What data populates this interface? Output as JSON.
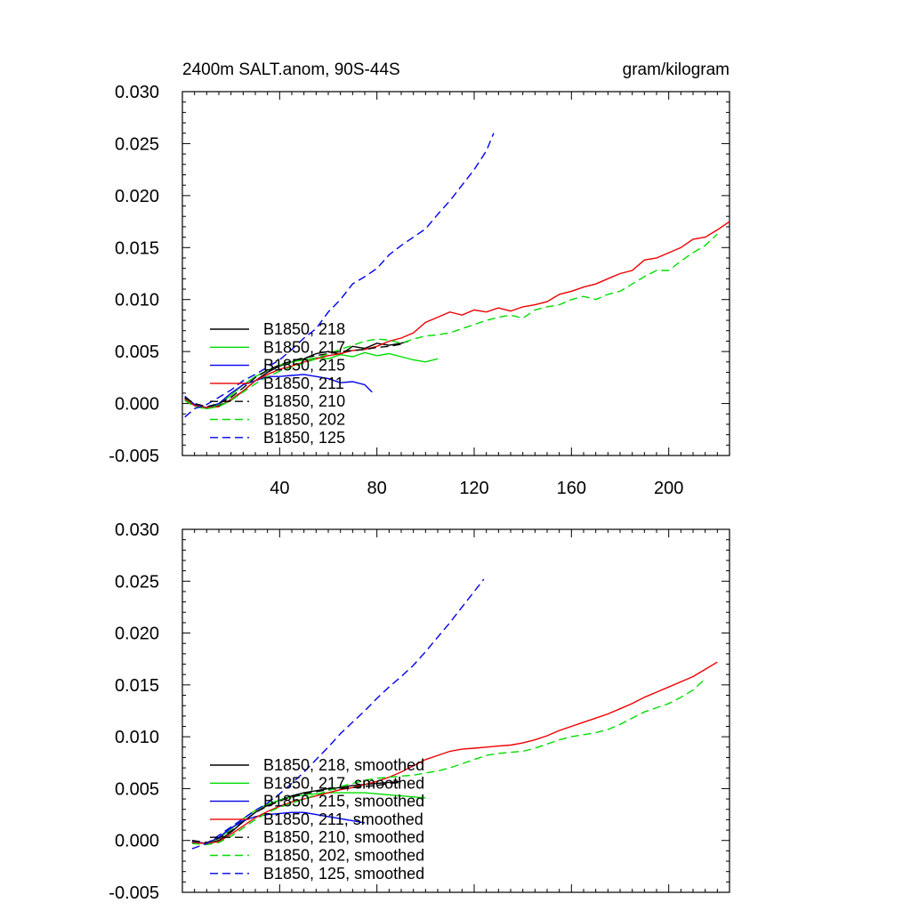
{
  "chart_data": [
    {
      "type": "line",
      "title": "2400m SALT.anom, 90S-44S",
      "units": "gram/kilogram",
      "xlim": [
        0,
        225
      ],
      "ylim": [
        -0.005,
        0.03
      ],
      "yticks": [
        "-0.005",
        "0.000",
        "0.005",
        "0.010",
        "0.015",
        "0.020",
        "0.025",
        "0.030"
      ],
      "xticks": [
        "40",
        "80",
        "120",
        "160",
        "200"
      ],
      "legend_position": "lower-left",
      "series": [
        {
          "name": "B1850, 218",
          "color": "#000000",
          "dash": "solid",
          "x": [
            1,
            5,
            10,
            15,
            20,
            25,
            30,
            35,
            40,
            45,
            50,
            55,
            60,
            65,
            70,
            75,
            80,
            85,
            90,
            93
          ],
          "y": [
            0.0005,
            -0.0001,
            -0.0004,
            -0.0002,
            0.0003,
            0.0012,
            0.0022,
            0.003,
            0.0036,
            0.004,
            0.0043,
            0.0048,
            0.005,
            0.0047,
            0.0055,
            0.0053,
            0.0058,
            0.0056,
            0.0058,
            0.006
          ]
        },
        {
          "name": "B1850, 217",
          "color": "#00dd00",
          "dash": "solid",
          "x": [
            1,
            5,
            10,
            15,
            20,
            25,
            30,
            35,
            40,
            45,
            50,
            55,
            60,
            65,
            70,
            75,
            80,
            85,
            90,
            95,
            100,
            105
          ],
          "y": [
            0.0006,
            -0.0002,
            -0.0005,
            -0.0001,
            0.0008,
            0.0018,
            0.0026,
            0.0032,
            0.0037,
            0.004,
            0.0042,
            0.0044,
            0.0043,
            0.0047,
            0.0045,
            0.0049,
            0.0046,
            0.0048,
            0.0045,
            0.0042,
            0.004,
            0.0043
          ]
        },
        {
          "name": "B1850, 215",
          "color": "#0000ee",
          "dash": "solid",
          "x": [
            1,
            5,
            10,
            15,
            20,
            25,
            30,
            35,
            40,
            45,
            50,
            55,
            60,
            65,
            70,
            75,
            78
          ],
          "y": [
            0.0007,
            -0.0001,
            -0.0004,
            0.0,
            0.001,
            0.0018,
            0.0022,
            0.0026,
            0.0026,
            0.0027,
            0.0028,
            0.0026,
            0.0024,
            0.002,
            0.0021,
            0.0018,
            0.0011
          ]
        },
        {
          "name": "B1850, 211",
          "color": "#ee0000",
          "dash": "solid",
          "x": [
            1,
            5,
            10,
            15,
            20,
            25,
            30,
            35,
            40,
            45,
            50,
            55,
            60,
            65,
            70,
            75,
            80,
            85,
            90,
            95,
            100,
            105,
            110,
            115,
            120,
            125,
            130,
            135,
            140,
            145,
            150,
            155,
            160,
            165,
            170,
            175,
            180,
            185,
            190,
            195,
            200,
            205,
            210,
            215,
            220,
            225
          ],
          "y": [
            0.0004,
            -0.0002,
            -0.0004,
            -0.0003,
            0.0004,
            0.0012,
            0.0022,
            0.0028,
            0.0033,
            0.0036,
            0.004,
            0.0043,
            0.0046,
            0.0048,
            0.0051,
            0.0052,
            0.0055,
            0.006,
            0.0063,
            0.0068,
            0.0078,
            0.0083,
            0.0088,
            0.0085,
            0.009,
            0.0088,
            0.0092,
            0.0089,
            0.0093,
            0.0095,
            0.0098,
            0.0105,
            0.0108,
            0.0112,
            0.0115,
            0.012,
            0.0125,
            0.0128,
            0.0138,
            0.014,
            0.0145,
            0.015,
            0.0158,
            0.016,
            0.0167,
            0.0175
          ]
        },
        {
          "name": "B1850, 210",
          "color": "#000000",
          "dash": "dashed",
          "x": [
            1,
            5,
            10,
            15,
            20,
            25,
            30,
            35,
            40,
            45,
            50,
            55,
            60,
            65,
            70,
            75,
            80,
            85,
            90
          ],
          "y": [
            0.0006,
            0.0,
            -0.0003,
            0.0,
            0.0006,
            0.0015,
            0.0025,
            0.0032,
            0.0037,
            0.0041,
            0.0044,
            0.0046,
            0.0048,
            0.005,
            0.0051,
            0.0052,
            0.0054,
            0.0055,
            0.0057
          ]
        },
        {
          "name": "B1850, 202",
          "color": "#00dd00",
          "dash": "dashed",
          "x": [
            1,
            5,
            10,
            15,
            20,
            25,
            30,
            35,
            40,
            45,
            50,
            55,
            60,
            65,
            70,
            75,
            80,
            85,
            90,
            95,
            100,
            105,
            110,
            115,
            120,
            125,
            130,
            135,
            140,
            145,
            150,
            155,
            160,
            165,
            170,
            175,
            180,
            185,
            190,
            195,
            200,
            205,
            210,
            215,
            220
          ],
          "y": [
            0.0003,
            -0.0003,
            -0.0005,
            -0.0003,
            0.0003,
            0.0011,
            0.0019,
            0.0026,
            0.0031,
            0.0035,
            0.0039,
            0.0043,
            0.0048,
            0.0052,
            0.0056,
            0.006,
            0.0062,
            0.0061,
            0.0058,
            0.0062,
            0.0065,
            0.0066,
            0.0068,
            0.0072,
            0.0076,
            0.008,
            0.0083,
            0.0085,
            0.0082,
            0.009,
            0.0093,
            0.0095,
            0.01,
            0.0103,
            0.01,
            0.0105,
            0.0108,
            0.0115,
            0.0122,
            0.0128,
            0.0128,
            0.0137,
            0.0145,
            0.0152,
            0.0163
          ]
        },
        {
          "name": "B1850, 125",
          "color": "#0000ee",
          "dash": "dashed",
          "x": [
            1,
            5,
            10,
            15,
            20,
            25,
            30,
            35,
            40,
            45,
            50,
            55,
            60,
            65,
            70,
            75,
            80,
            85,
            90,
            95,
            100,
            105,
            110,
            115,
            120,
            125,
            128
          ],
          "y": [
            -0.0013,
            -0.0005,
            -0.0001,
            0.0006,
            0.0013,
            0.0022,
            0.0028,
            0.0035,
            0.0042,
            0.0052,
            0.0063,
            0.0072,
            0.0088,
            0.01,
            0.0115,
            0.0122,
            0.013,
            0.0143,
            0.0152,
            0.016,
            0.0168,
            0.0182,
            0.0195,
            0.021,
            0.0225,
            0.0243,
            0.026
          ]
        }
      ]
    },
    {
      "type": "line",
      "title": "",
      "xlim": [
        0,
        225
      ],
      "ylim": [
        -0.005,
        0.03
      ],
      "yticks": [
        "-0.005",
        "0.000",
        "0.005",
        "0.010",
        "0.015",
        "0.020",
        "0.025",
        "0.030"
      ],
      "xticks": [],
      "legend_position": "lower-left",
      "series": [
        {
          "name": "B1850, 218, smoothed",
          "color": "#000000",
          "dash": "solid",
          "x": [
            4,
            10,
            15,
            20,
            25,
            30,
            35,
            40,
            45,
            50,
            55,
            60,
            65,
            70,
            75,
            80,
            85,
            90
          ],
          "y": [
            -0.0001,
            -0.0003,
            0.0,
            0.0008,
            0.0018,
            0.0027,
            0.0034,
            0.0039,
            0.0043,
            0.0046,
            0.0048,
            0.005,
            0.0051,
            0.0053,
            0.0054,
            0.0055,
            0.0056,
            0.0057
          ]
        },
        {
          "name": "B1850, 217, smoothed",
          "color": "#00dd00",
          "dash": "solid",
          "x": [
            4,
            10,
            15,
            20,
            25,
            30,
            35,
            40,
            45,
            50,
            55,
            60,
            65,
            70,
            75,
            80,
            85,
            90,
            95,
            100
          ],
          "y": [
            -0.0002,
            -0.0003,
            0.0002,
            0.0011,
            0.0021,
            0.0029,
            0.0035,
            0.0039,
            0.0042,
            0.0044,
            0.0045,
            0.0046,
            0.0046,
            0.0046,
            0.0046,
            0.0045,
            0.0044,
            0.0043,
            0.0042,
            0.0041
          ]
        },
        {
          "name": "B1850, 215, smoothed",
          "color": "#0000ee",
          "dash": "solid",
          "x": [
            4,
            10,
            15,
            20,
            25,
            30,
            35,
            40,
            45,
            50,
            55,
            60,
            65,
            70,
            75
          ],
          "y": [
            -0.0001,
            -0.0003,
            0.0003,
            0.0012,
            0.0019,
            0.0023,
            0.0025,
            0.0026,
            0.0027,
            0.0027,
            0.0025,
            0.0023,
            0.0021,
            0.0019,
            0.0017
          ]
        },
        {
          "name": "B1850, 211, smoothed",
          "color": "#ee0000",
          "dash": "solid",
          "x": [
            4,
            10,
            15,
            20,
            25,
            30,
            35,
            40,
            45,
            50,
            55,
            60,
            65,
            70,
            75,
            80,
            85,
            90,
            95,
            100,
            105,
            110,
            115,
            120,
            125,
            130,
            135,
            140,
            145,
            150,
            155,
            160,
            165,
            170,
            175,
            180,
            185,
            190,
            195,
            200,
            205,
            210,
            215,
            220
          ],
          "y": [
            -0.0002,
            -0.0003,
            -0.0001,
            0.0006,
            0.0014,
            0.0022,
            0.0028,
            0.0033,
            0.0037,
            0.004,
            0.0043,
            0.0046,
            0.0049,
            0.0051,
            0.0054,
            0.0057,
            0.0061,
            0.0066,
            0.0072,
            0.0078,
            0.0082,
            0.0086,
            0.0088,
            0.0089,
            0.009,
            0.0091,
            0.0092,
            0.0094,
            0.0097,
            0.0101,
            0.0106,
            0.011,
            0.0114,
            0.0118,
            0.0122,
            0.0127,
            0.0132,
            0.0138,
            0.0143,
            0.0148,
            0.0153,
            0.0158,
            0.0165,
            0.0172
          ]
        },
        {
          "name": "B1850, 210, smoothed",
          "color": "#000000",
          "dash": "dashed",
          "x": [
            4,
            10,
            15,
            20,
            25,
            30,
            35,
            40,
            45,
            50,
            55,
            60,
            65,
            70,
            75,
            80,
            85,
            90
          ],
          "y": [
            0.0,
            -0.0002,
            0.0002,
            0.0009,
            0.0018,
            0.0027,
            0.0033,
            0.0038,
            0.0042,
            0.0045,
            0.0047,
            0.0049,
            0.005,
            0.0051,
            0.0052,
            0.0053,
            0.0055,
            0.0056
          ]
        },
        {
          "name": "B1850, 202, smoothed",
          "color": "#00dd00",
          "dash": "dashed",
          "x": [
            4,
            10,
            15,
            20,
            25,
            30,
            35,
            40,
            45,
            50,
            55,
            60,
            65,
            70,
            75,
            80,
            85,
            90,
            95,
            100,
            105,
            110,
            115,
            120,
            125,
            130,
            135,
            140,
            145,
            150,
            155,
            160,
            165,
            170,
            175,
            180,
            185,
            190,
            195,
            200,
            205,
            210,
            215
          ],
          "y": [
            -0.0003,
            -0.0004,
            -0.0002,
            0.0004,
            0.0012,
            0.002,
            0.0027,
            0.0032,
            0.0036,
            0.004,
            0.0044,
            0.0048,
            0.0052,
            0.0055,
            0.0058,
            0.006,
            0.0061,
            0.0062,
            0.0063,
            0.0065,
            0.0067,
            0.007,
            0.0074,
            0.0078,
            0.0082,
            0.0084,
            0.0085,
            0.0086,
            0.0089,
            0.0093,
            0.0097,
            0.01,
            0.0102,
            0.0104,
            0.0107,
            0.0112,
            0.0118,
            0.0124,
            0.0128,
            0.0132,
            0.0138,
            0.0145,
            0.0156
          ]
        },
        {
          "name": "B1850, 125, smoothed",
          "color": "#0000ee",
          "dash": "dashed",
          "x": [
            4,
            10,
            15,
            20,
            25,
            30,
            35,
            40,
            45,
            50,
            55,
            60,
            65,
            70,
            75,
            80,
            85,
            90,
            95,
            100,
            105,
            110,
            115,
            120,
            124
          ],
          "y": [
            -0.0008,
            -0.0003,
            0.0005,
            0.0013,
            0.0021,
            0.0029,
            0.0036,
            0.0045,
            0.0055,
            0.0066,
            0.0078,
            0.009,
            0.0103,
            0.0114,
            0.0125,
            0.0137,
            0.0148,
            0.0158,
            0.0169,
            0.0182,
            0.0196,
            0.021,
            0.0225,
            0.024,
            0.0252
          ]
        }
      ]
    }
  ]
}
